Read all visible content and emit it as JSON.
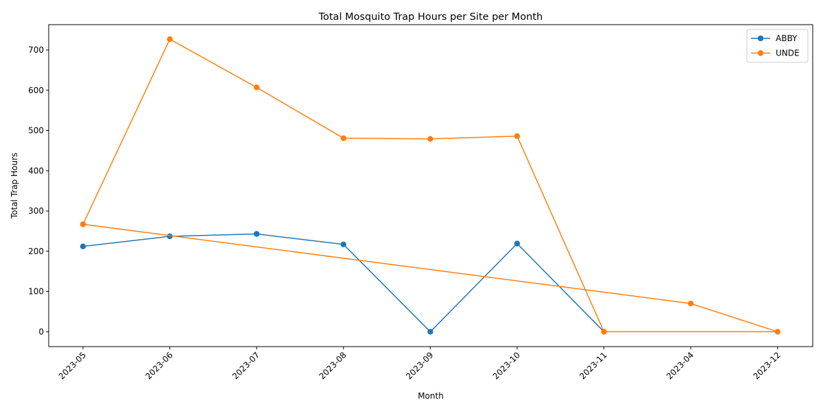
{
  "chart_data": {
    "type": "line",
    "title": "Total Mosquito Trap Hours per Site per Month",
    "xlabel": "Month",
    "ylabel": "Total Trap Hours",
    "categories": [
      "2023-05",
      "2023-06",
      "2023-07",
      "2023-08",
      "2023-09",
      "2023-10",
      "2023-11",
      "2023-04",
      "2023-12"
    ],
    "ylim": [
      -37,
      763
    ],
    "yticks": [
      0,
      100,
      200,
      300,
      400,
      500,
      600,
      700
    ],
    "grid": false,
    "legend_position": "upper right",
    "series": [
      {
        "name": "ABBY",
        "color": "#1f77b4",
        "points": [
          {
            "x": "2023-05",
            "y": 212
          },
          {
            "x": "2023-06",
            "y": 237
          },
          {
            "x": "2023-07",
            "y": 243
          },
          {
            "x": "2023-08",
            "y": 217
          },
          {
            "x": "2023-09",
            "y": 0
          },
          {
            "x": "2023-10",
            "y": 219
          },
          {
            "x": "2023-11",
            "y": 0
          }
        ]
      },
      {
        "name": "UNDE",
        "color": "#ff7f0e",
        "points": [
          {
            "x": "2023-05",
            "y": 267
          },
          {
            "x": "2023-06",
            "y": 727
          },
          {
            "x": "2023-07",
            "y": 607
          },
          {
            "x": "2023-08",
            "y": 481
          },
          {
            "x": "2023-09",
            "y": 479
          },
          {
            "x": "2023-10",
            "y": 486
          },
          {
            "x": "2023-11",
            "y": 0
          },
          {
            "x": "2023-12",
            "y": 0
          },
          {
            "x": "2023-04",
            "y": 70
          },
          {
            "x": "2023-05",
            "y": 267
          }
        ]
      }
    ]
  }
}
